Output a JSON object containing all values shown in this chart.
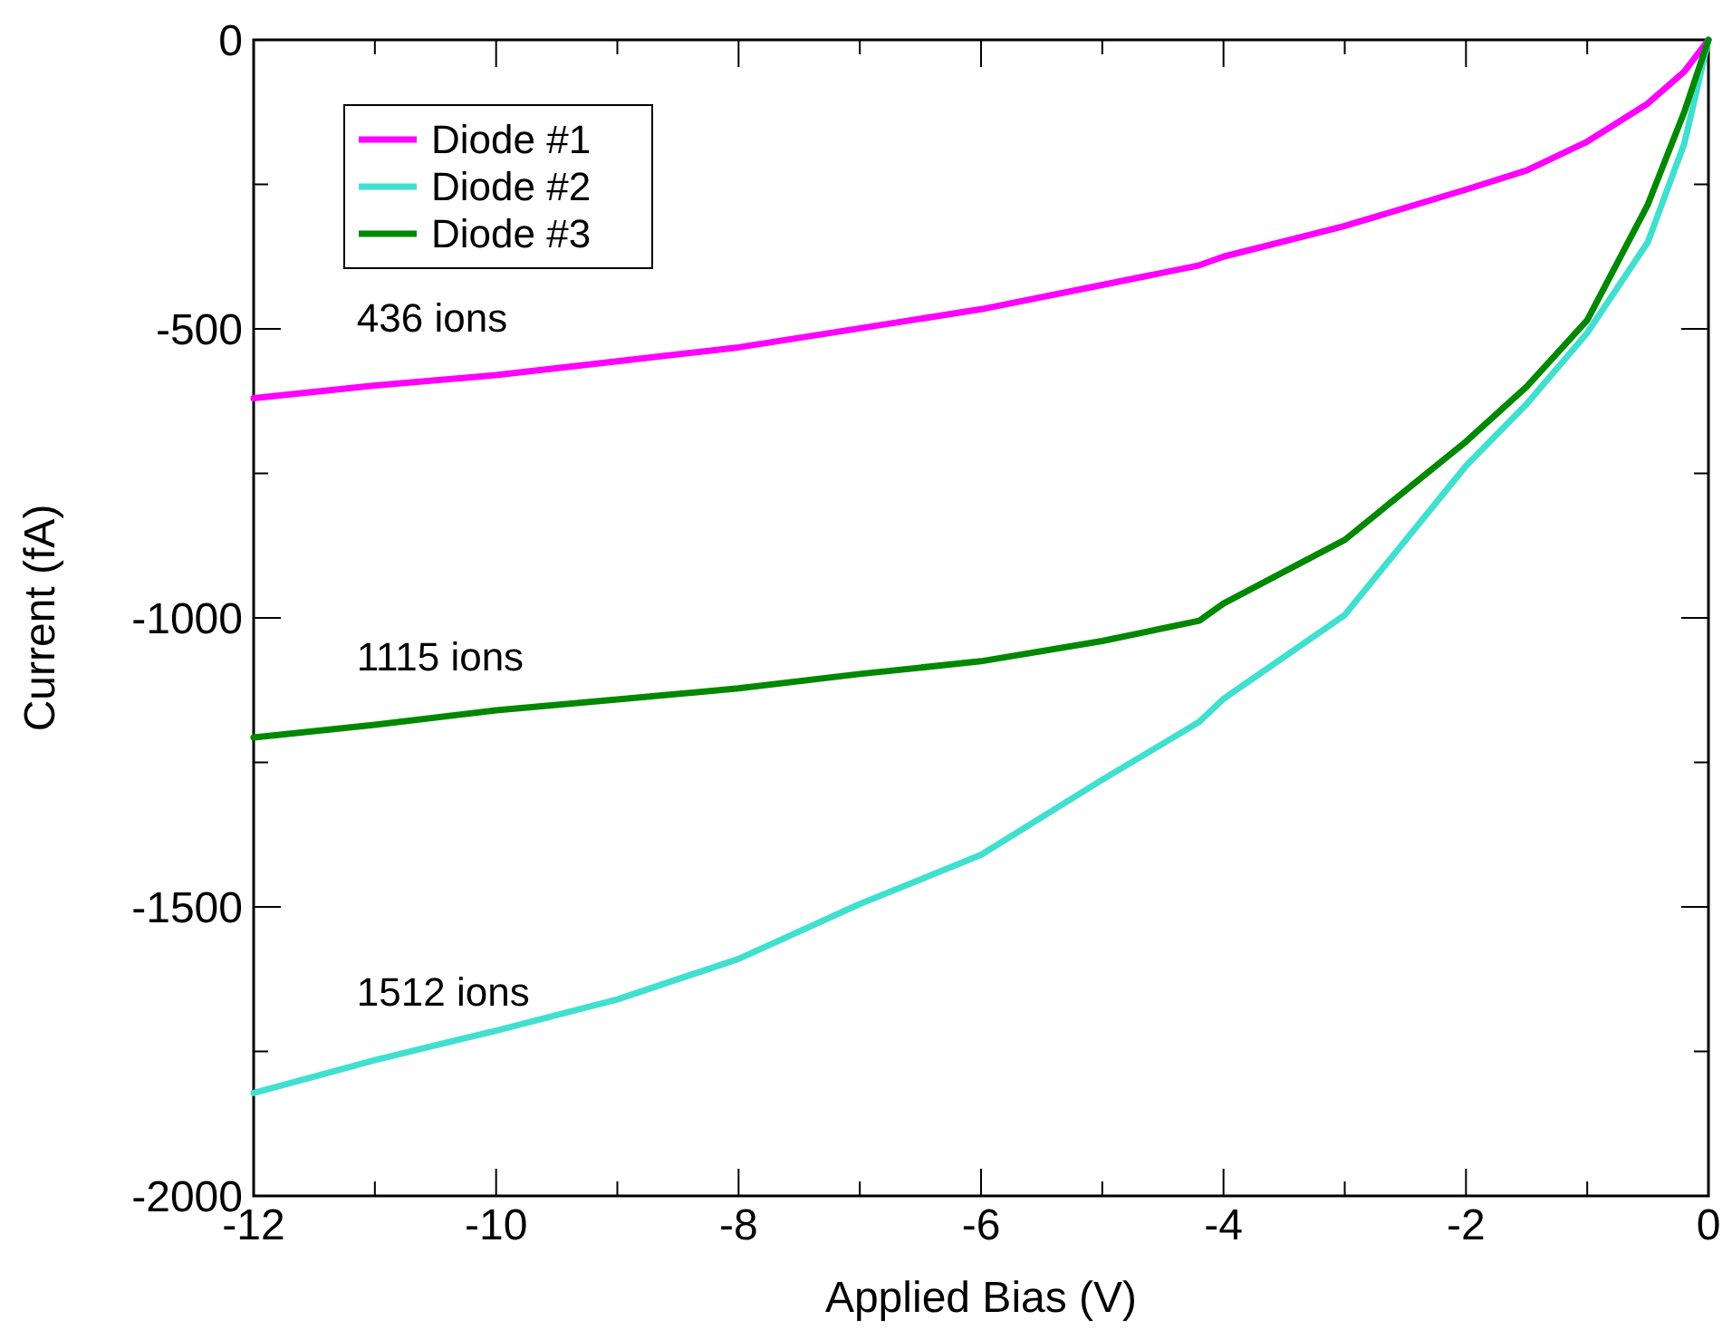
{
  "chart_data": {
    "type": "line",
    "xlabel": "Applied Bias (V)",
    "ylabel": "Current (fA)",
    "x": [
      -12,
      -11,
      -10,
      -9,
      -8,
      -7,
      -6,
      -5,
      -4.2,
      -4,
      -3,
      -2,
      -1.5,
      -1,
      -0.5,
      -0.2,
      0
    ],
    "series": [
      {
        "name": "Diode #1",
        "color": "#ff00ff",
        "values": [
          -620,
          -598,
          -580,
          -556,
          -532,
          -499,
          -466,
          -424,
          -390,
          -375,
          -322,
          -259,
          -226,
          -176,
          -110,
          -55,
          0
        ]
      },
      {
        "name": "Diode #2",
        "color": "#40e0d0",
        "values": [
          -1822,
          -1765,
          -1714,
          -1660,
          -1590,
          -1495,
          -1410,
          -1280,
          -1180,
          -1140,
          -995,
          -737,
          -630,
          -507,
          -350,
          -180,
          0
        ]
      },
      {
        "name": "Diode #3",
        "color": "#008800",
        "values": [
          -1207,
          -1185,
          -1160,
          -1141,
          -1122,
          -1097,
          -1075,
          -1040,
          -1005,
          -975,
          -865,
          -695,
          -600,
          -485,
          -285,
          -125,
          0
        ]
      }
    ],
    "xlim": [
      -12,
      0
    ],
    "ylim": [
      -2000,
      0
    ],
    "xticks": [
      -12,
      {
        "value": -11,
        "label": null
      },
      -10,
      {
        "value": -9,
        "label": null
      },
      -8,
      {
        "value": -7,
        "label": null
      },
      -6,
      {
        "value": -5,
        "label": null
      },
      -4,
      {
        "value": -3,
        "label": null
      },
      -2,
      {
        "value": -1,
        "label": null
      },
      0
    ],
    "yticks": [
      -2000,
      {
        "value": -1750,
        "label": null
      },
      -1500,
      {
        "value": -1250,
        "label": null
      },
      -1000,
      {
        "value": -750,
        "label": null
      },
      -500,
      {
        "value": -250,
        "label": null
      },
      0
    ],
    "annotations": [
      "436 ions",
      "1115 ions",
      "1512 ions"
    ],
    "legend": "top left",
    "grid": false,
    "marker": "none",
    "line_style": "solid"
  }
}
